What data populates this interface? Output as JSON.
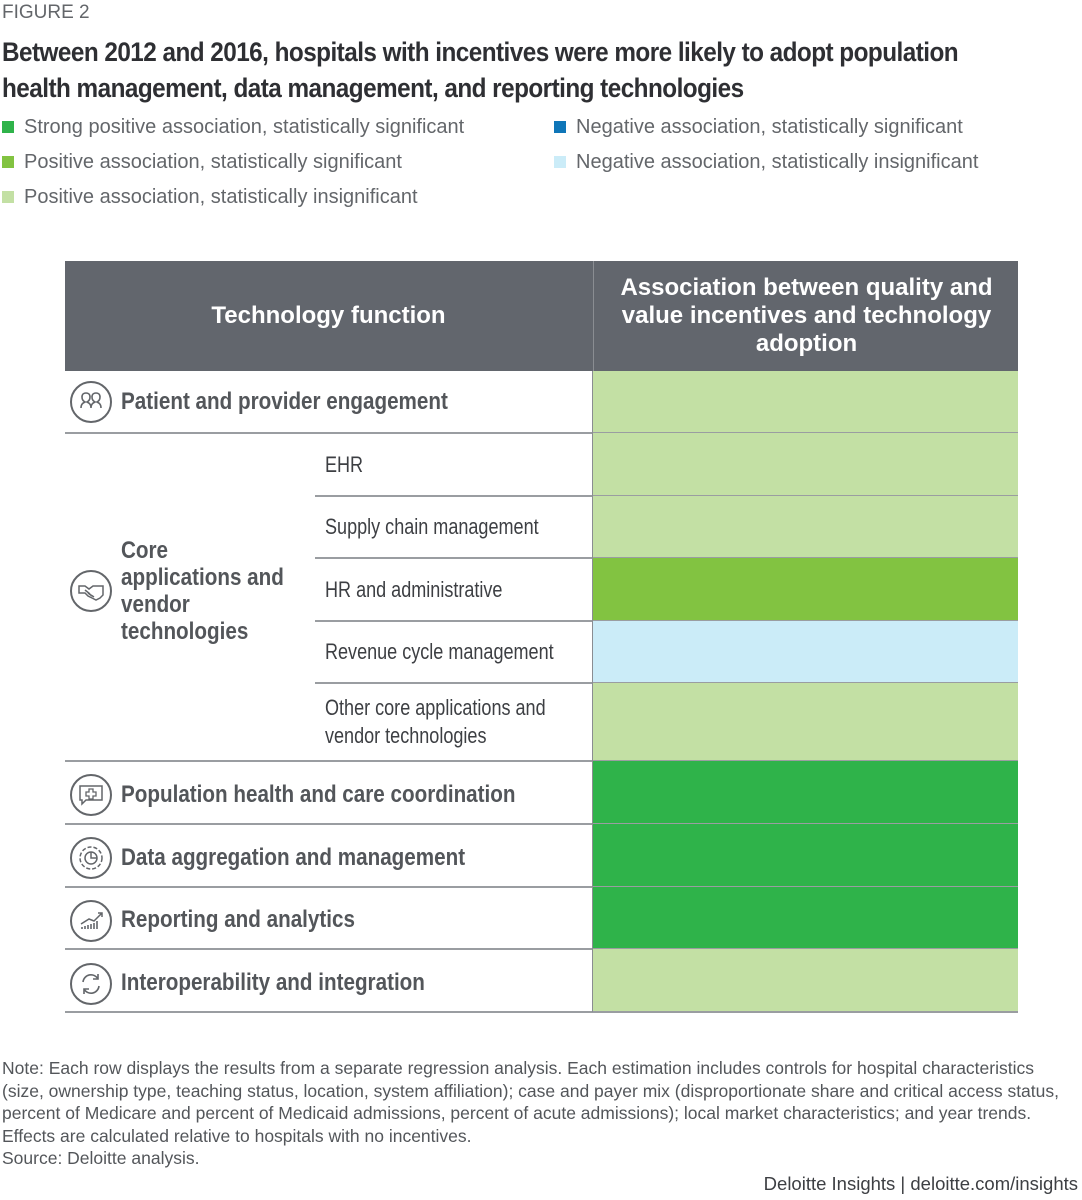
{
  "figure_label": "FIGURE 2",
  "title": "Between 2012 and 2016, hospitals with incentives were more likely to adopt population health management, data management, and reporting technologies",
  "legend": [
    {
      "key": "strong_pos_sig",
      "label": "Strong positive association, statistically significant",
      "color": "#2fb34a"
    },
    {
      "key": "pos_sig",
      "label": "Positive association, statistically significant",
      "color": "#82c341"
    },
    {
      "key": "pos_insig",
      "label": "Positive association, statistically insignificant",
      "color": "#c3e0a4"
    },
    {
      "key": "neg_sig",
      "label": "Negative association, statistically significant",
      "color": "#0f76b8"
    },
    {
      "key": "neg_insig",
      "label": "Negative association, statistically insignificant",
      "color": "#cbecf8"
    }
  ],
  "table": {
    "header_col1": "Technology function",
    "header_col2": "Association between quality and value incentives and technology adoption",
    "groups": [
      {
        "label": "Patient and provider engagement",
        "icon": "people-icon"
      },
      {
        "label": "Core applications and vendor technologies",
        "icon": "handshake-icon"
      },
      {
        "label": "Population health and care coordination",
        "icon": "medical-chat-icon"
      },
      {
        "label": "Data aggregation and management",
        "icon": "gear-chart-icon"
      },
      {
        "label": "Reporting and analytics",
        "icon": "growth-chart-icon"
      },
      {
        "label": "Interoperability and integration",
        "icon": "sync-icon"
      }
    ]
  },
  "chart_data": {
    "type": "table",
    "title": "Between 2012 and 2016, hospitals with incentives were more likely to adopt population health management, data management, and reporting technologies",
    "columns": [
      "Technology function",
      "Association between quality and value incentives and technology adoption"
    ],
    "rows": [
      {
        "group": "Patient and provider engagement",
        "sub": "",
        "association": "Positive association, statistically insignificant"
      },
      {
        "group": "Core applications and vendor technologies",
        "sub": "EHR",
        "association": "Positive association, statistically insignificant"
      },
      {
        "group": "Core applications and vendor technologies",
        "sub": "Supply chain management",
        "association": "Positive association, statistically insignificant"
      },
      {
        "group": "Core applications and vendor technologies",
        "sub": "HR and administrative",
        "association": "Positive association, statistically significant"
      },
      {
        "group": "Core applications and vendor technologies",
        "sub": "Revenue cycle management",
        "association": "Negative association, statistically insignificant"
      },
      {
        "group": "Core applications and vendor technologies",
        "sub": "Other core applications and vendor technologies",
        "association": "Positive association, statistically insignificant"
      },
      {
        "group": "Population health and care coordination",
        "sub": "",
        "association": "Strong positive association, statistically significant"
      },
      {
        "group": "Data aggregation and management",
        "sub": "",
        "association": "Strong positive association, statistically significant"
      },
      {
        "group": "Reporting and analytics",
        "sub": "",
        "association": "Strong positive association, statistically significant"
      },
      {
        "group": "Interoperability and integration",
        "sub": "",
        "association": "Positive association, statistically insignificant"
      }
    ],
    "sub_labels": [
      "EHR",
      "Supply chain management",
      "HR and administrative",
      "Revenue cycle management",
      "Other core applications and vendor technologies"
    ],
    "legend_position": "top"
  },
  "note": "Note: Each row displays the results from a separate regression analysis. Each estimation includes controls for hospital characteristics (size, ownership type, teaching status, location, system affiliation); case and payer mix (disproportionate share and critical access status, percent of Medicare and percent of Medicaid admissions, percent of acute admissions); local market characteristics; and year trends. Effects are calculated relative to hospitals with no incentives.",
  "source": "Source: Deloitte analysis.",
  "footer": "Deloitte Insights | deloitte.com/insights"
}
